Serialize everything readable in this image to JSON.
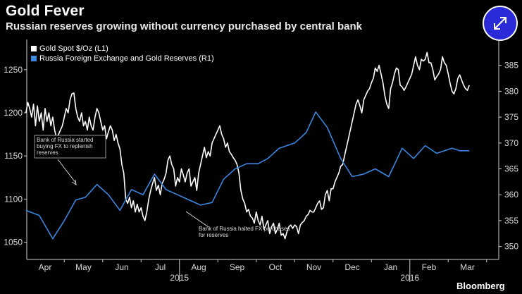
{
  "header": {
    "title": "Gold Fever",
    "subtitle": "Russian reserves growing without currency purchased by central bank"
  },
  "legend": {
    "gold_label": "Gold Spot $/Oz  (L1)",
    "reserves_label": "Russia Foreign Exchange and Gold Reserves  (R1)"
  },
  "brand": "Bloomberg",
  "icons": {
    "expand": "expand-arrows-icon"
  },
  "colors": {
    "background": "#000000",
    "gold": "#ffffff",
    "reserves": "#3a86e0",
    "button": "#2a2ad8"
  },
  "chart_data": {
    "type": "line",
    "title": "Gold Fever",
    "left_axis": {
      "label": "Gold Spot $/Oz",
      "ylim": [
        1030,
        1285
      ],
      "ticks": [
        1050,
        1100,
        1150,
        1200,
        1250
      ]
    },
    "right_axis": {
      "label": "Russia Foreign Exchange and Gold Reserves",
      "ylim": [
        347.5,
        390
      ],
      "ticks": [
        350,
        355,
        360,
        365,
        370,
        375,
        380,
        385
      ]
    },
    "x_axis": {
      "month_labels": [
        "Apr",
        "May",
        "Jun",
        "Jul",
        "Aug",
        "Sep",
        "Oct",
        "Nov",
        "Dec",
        "Jan",
        "Feb",
        "Mar"
      ],
      "year_labels": [
        {
          "text": "2015",
          "month_index": 4
        },
        {
          "text": "2016",
          "month_index": 10
        }
      ]
    },
    "series": [
      {
        "name": "Gold Spot $/Oz (L1)",
        "axis": "left",
        "color": "#ffffff",
        "x": [
          0.0,
          0.05,
          0.1,
          0.15,
          0.2,
          0.25,
          0.3,
          0.35,
          0.4,
          0.45,
          0.5,
          0.55,
          0.6,
          0.65,
          0.7,
          0.75,
          0.8,
          0.85,
          0.9,
          0.95,
          1.0,
          1.05,
          1.1,
          1.15,
          1.2,
          1.25,
          1.3,
          1.35,
          1.4,
          1.45,
          1.5,
          1.55,
          1.6,
          1.65,
          1.7,
          1.75,
          1.8,
          1.85,
          1.9,
          1.95,
          2.0,
          2.05,
          2.1,
          2.15,
          2.2,
          2.25,
          2.3,
          2.35,
          2.4,
          2.45,
          2.5,
          2.55,
          2.6,
          2.65,
          2.7,
          2.75,
          2.8,
          2.85,
          2.9,
          2.95,
          3.0,
          3.05,
          3.1,
          3.15,
          3.2,
          3.25,
          3.3,
          3.35,
          3.4,
          3.45,
          3.5,
          3.55,
          3.6,
          3.65,
          3.7,
          3.75,
          3.8,
          3.85,
          3.9,
          3.95,
          4.0,
          4.05,
          4.1,
          4.15,
          4.2,
          4.25,
          4.3,
          4.35,
          4.4,
          4.45,
          4.5,
          4.55,
          4.6,
          4.65,
          4.7,
          4.75,
          4.8,
          4.85,
          4.9,
          4.95,
          5.0,
          5.05,
          5.1,
          5.15,
          5.2,
          5.25,
          5.3,
          5.35,
          5.4,
          5.45,
          5.5,
          5.55,
          5.6,
          5.65,
          5.7,
          5.75,
          5.8,
          5.85,
          5.9,
          5.95,
          6.0,
          6.05,
          6.1,
          6.15,
          6.2,
          6.25,
          6.3,
          6.35,
          6.4,
          6.45,
          6.5,
          6.55,
          6.6,
          6.65,
          6.7,
          6.75,
          6.8,
          6.85,
          6.9,
          6.95,
          7.0,
          7.05,
          7.1,
          7.15,
          7.2,
          7.25,
          7.3,
          7.35,
          7.4,
          7.45,
          7.5,
          7.55,
          7.6,
          7.65,
          7.7,
          7.75,
          7.8,
          7.85,
          7.9,
          7.95,
          8.0,
          8.05,
          8.1,
          8.15,
          8.2,
          8.25,
          8.3,
          8.35,
          8.4,
          8.45,
          8.5,
          8.55,
          8.6,
          8.65,
          8.7,
          8.75,
          8.8,
          8.85,
          8.9,
          8.95,
          9.0,
          9.05,
          9.1,
          9.15,
          9.2,
          9.25,
          9.3,
          9.35,
          9.4,
          9.45,
          9.5,
          9.55,
          9.6,
          9.65,
          9.7,
          9.75,
          9.8,
          9.85,
          9.9,
          9.95,
          10.0,
          10.05,
          10.1,
          10.15,
          10.2,
          10.25,
          10.3,
          10.35,
          10.4,
          10.45,
          10.5,
          10.55,
          10.6,
          10.65,
          10.7,
          10.75,
          10.8,
          10.85,
          10.9,
          10.95,
          11.0,
          11.05,
          11.1,
          11.15,
          11.2,
          11.25,
          11.3,
          11.35,
          11.4,
          11.45,
          11.5,
          11.55
        ],
        "values": [
          1200,
          1212,
          1205,
          1195,
          1210,
          1185,
          1208,
          1190,
          1200,
          1180,
          1205,
          1190,
          1200,
          1185,
          1195,
          1180,
          1170,
          1175,
          1180,
          1185,
          1195,
          1205,
          1200,
          1215,
          1222,
          1223,
          1205,
          1195,
          1190,
          1200,
          1185,
          1190,
          1180,
          1195,
          1185,
          1180,
          1195,
          1205,
          1200,
          1190,
          1180,
          1185,
          1170,
          1178,
          1185,
          1180,
          1168,
          1175,
          1165,
          1158,
          1140,
          1130,
          1100,
          1095,
          1102,
          1090,
          1098,
          1085,
          1094,
          1085,
          1090,
          1080,
          1075,
          1085,
          1100,
          1110,
          1118,
          1125,
          1110,
          1116,
          1105,
          1118,
          1123,
          1130,
          1145,
          1150,
          1140,
          1135,
          1115,
          1125,
          1120,
          1135,
          1128,
          1120,
          1130,
          1135,
          1115,
          1120,
          1125,
          1110,
          1130,
          1140,
          1150,
          1160,
          1148,
          1155,
          1150,
          1165,
          1170,
          1175,
          1180,
          1185,
          1175,
          1170,
          1160,
          1165,
          1155,
          1152,
          1148,
          1145,
          1140,
          1130,
          1110,
          1100,
          1095,
          1085,
          1088,
          1080,
          1078,
          1072,
          1085,
          1075,
          1070,
          1080,
          1065,
          1070,
          1075,
          1060,
          1068,
          1072,
          1060,
          1065,
          1072,
          1058,
          1060,
          1054,
          1062,
          1068,
          1070,
          1066,
          1070,
          1068,
          1060,
          1070,
          1073,
          1075,
          1080,
          1082,
          1087,
          1085,
          1085,
          1090,
          1095,
          1098,
          1088,
          1090,
          1105,
          1110,
          1098,
          1112,
          1112,
          1120,
          1125,
          1130,
          1138,
          1140,
          1150,
          1160,
          1170,
          1180,
          1190,
          1200,
          1210,
          1215,
          1208,
          1200,
          1215,
          1220,
          1225,
          1228,
          1235,
          1240,
          1252,
          1248,
          1255,
          1245,
          1235,
          1220,
          1210,
          1205,
          1228,
          1235,
          1245,
          1252,
          1250,
          1232,
          1230,
          1226,
          1230,
          1235,
          1240,
          1245,
          1255,
          1265,
          1255,
          1250,
          1262,
          1260,
          1262,
          1270,
          1258,
          1258,
          1250,
          1238,
          1242,
          1245,
          1250,
          1265,
          1258,
          1255,
          1245,
          1234,
          1225,
          1222,
          1228,
          1240,
          1244,
          1238,
          1232,
          1228,
          1226,
          1232
        ]
      },
      {
        "name": "Russia Foreign Exchange and Gold Reserves (R1)",
        "axis": "right",
        "color": "#3a86e0",
        "x": [
          0.0,
          0.35,
          0.7,
          1.0,
          1.3,
          1.55,
          1.85,
          2.15,
          2.45,
          2.75,
          3.05,
          3.35,
          3.65,
          3.95,
          4.25,
          4.55,
          4.85,
          5.15,
          5.45,
          5.75,
          6.05,
          6.3,
          6.6,
          7.0,
          7.3,
          7.55,
          7.85,
          8.2,
          8.5,
          8.8,
          9.1,
          9.45,
          9.8,
          10.1,
          10.4,
          10.7,
          11.1,
          11.3,
          11.55
        ],
        "values": [
          357.0,
          356.0,
          351.5,
          355.0,
          359.0,
          359.5,
          362.0,
          360.0,
          357.0,
          361.0,
          360.0,
          364.0,
          361.0,
          360.0,
          359.0,
          358.0,
          358.5,
          363.0,
          365.0,
          366.0,
          366.0,
          367.0,
          369.0,
          370.0,
          372.0,
          376.0,
          373.0,
          367.0,
          363.5,
          364.0,
          365.0,
          363.5,
          369.0,
          367.0,
          369.5,
          368.0,
          369.0,
          368.5,
          368.5
        ]
      }
    ],
    "annotations": [
      {
        "lines": [
          "Bank of Russia started",
          "buying FX to replenish",
          "reserves"
        ]
      },
      {
        "lines": [
          "Bank of Russia halted FX purchases",
          "for reserves"
        ]
      }
    ]
  }
}
